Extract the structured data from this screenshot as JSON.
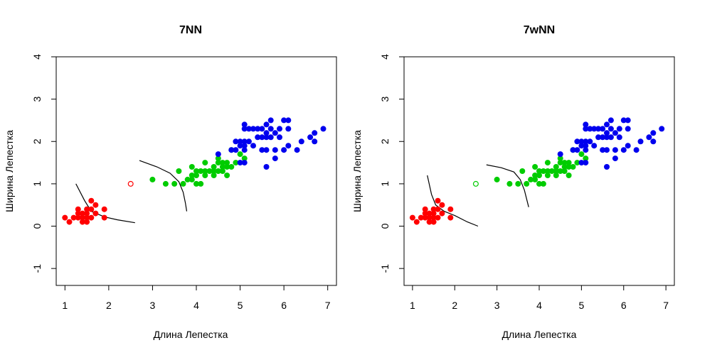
{
  "chart_data": [
    {
      "type": "scatter",
      "title": "7NN",
      "xlabel": "Длина Лепестка",
      "ylabel": "Ширина Лепестка",
      "xlim": [
        0.8,
        7.2
      ],
      "ylim": [
        -1.4,
        4.0
      ],
      "xticks": [
        "1",
        "2",
        "3",
        "4",
        "5",
        "6",
        "7"
      ],
      "yticks": [
        "-1",
        "0",
        "1",
        "2",
        "3",
        "4"
      ],
      "grid": false,
      "series": [
        {
          "color": "#ff0000",
          "filled": true,
          "points": [
            [
              1.0,
              0.2
            ],
            [
              1.1,
              0.1
            ],
            [
              1.2,
              0.2
            ],
            [
              1.3,
              0.2
            ],
            [
              1.3,
              0.3
            ],
            [
              1.3,
              0.4
            ],
            [
              1.4,
              0.1
            ],
            [
              1.4,
              0.2
            ],
            [
              1.4,
              0.3
            ],
            [
              1.5,
              0.1
            ],
            [
              1.5,
              0.2
            ],
            [
              1.5,
              0.3
            ],
            [
              1.5,
              0.4
            ],
            [
              1.6,
              0.2
            ],
            [
              1.6,
              0.4
            ],
            [
              1.6,
              0.6
            ],
            [
              1.7,
              0.3
            ],
            [
              1.7,
              0.5
            ],
            [
              1.9,
              0.2
            ],
            [
              1.9,
              0.4
            ]
          ]
        },
        {
          "color": "#00cc00",
          "filled": true,
          "points": [
            [
              3.0,
              1.1
            ],
            [
              3.3,
              1.0
            ],
            [
              3.5,
              1.0
            ],
            [
              3.6,
              1.3
            ],
            [
              3.7,
              1.0
            ],
            [
              3.8,
              1.1
            ],
            [
              3.9,
              1.1
            ],
            [
              3.9,
              1.2
            ],
            [
              3.9,
              1.4
            ],
            [
              4.0,
              1.0
            ],
            [
              4.0,
              1.2
            ],
            [
              4.0,
              1.3
            ],
            [
              4.1,
              1.0
            ],
            [
              4.1,
              1.3
            ],
            [
              4.2,
              1.2
            ],
            [
              4.2,
              1.3
            ],
            [
              4.2,
              1.5
            ],
            [
              4.3,
              1.3
            ],
            [
              4.4,
              1.2
            ],
            [
              4.4,
              1.3
            ],
            [
              4.4,
              1.4
            ],
            [
              4.5,
              1.3
            ],
            [
              4.5,
              1.5
            ],
            [
              4.5,
              1.6
            ],
            [
              4.6,
              1.3
            ],
            [
              4.6,
              1.4
            ],
            [
              4.6,
              1.5
            ],
            [
              4.7,
              1.2
            ],
            [
              4.7,
              1.4
            ],
            [
              4.7,
              1.5
            ],
            [
              4.8,
              1.4
            ],
            [
              4.8,
              1.8
            ],
            [
              4.9,
              1.5
            ],
            [
              5.0,
              1.7
            ],
            [
              5.1,
              1.6
            ]
          ]
        },
        {
          "color": "#0000ee",
          "filled": true,
          "points": [
            [
              4.5,
              1.7
            ],
            [
              4.8,
              1.8
            ],
            [
              4.9,
              1.8
            ],
            [
              4.9,
              2.0
            ],
            [
              5.0,
              1.5
            ],
            [
              5.0,
              1.9
            ],
            [
              5.0,
              2.0
            ],
            [
              5.1,
              1.5
            ],
            [
              5.1,
              1.8
            ],
            [
              5.1,
              1.9
            ],
            [
              5.1,
              2.0
            ],
            [
              5.1,
              2.3
            ],
            [
              5.1,
              2.4
            ],
            [
              5.2,
              2.0
            ],
            [
              5.2,
              2.3
            ],
            [
              5.3,
              1.9
            ],
            [
              5.3,
              2.3
            ],
            [
              5.4,
              2.1
            ],
            [
              5.4,
              2.3
            ],
            [
              5.5,
              1.8
            ],
            [
              5.5,
              2.1
            ],
            [
              5.5,
              2.3
            ],
            [
              5.6,
              1.4
            ],
            [
              5.6,
              1.8
            ],
            [
              5.6,
              2.1
            ],
            [
              5.6,
              2.2
            ],
            [
              5.6,
              2.4
            ],
            [
              5.7,
              2.1
            ],
            [
              5.7,
              2.3
            ],
            [
              5.7,
              2.5
            ],
            [
              5.8,
              1.6
            ],
            [
              5.8,
              1.8
            ],
            [
              5.8,
              2.2
            ],
            [
              5.9,
              2.1
            ],
            [
              5.9,
              2.3
            ],
            [
              6.0,
              1.8
            ],
            [
              6.0,
              2.5
            ],
            [
              6.1,
              1.9
            ],
            [
              6.1,
              2.3
            ],
            [
              6.1,
              2.5
            ],
            [
              6.3,
              1.8
            ],
            [
              6.4,
              2.0
            ],
            [
              6.6,
              2.1
            ],
            [
              6.7,
              2.0
            ],
            [
              6.7,
              2.2
            ],
            [
              6.9,
              2.3
            ]
          ]
        },
        {
          "color": "#ff0000",
          "filled": false,
          "points": [
            [
              2.5,
              1.0
            ]
          ]
        }
      ],
      "boundaries": [
        [
          [
            1.25,
            1.0
          ],
          [
            1.45,
            0.6
          ],
          [
            1.6,
            0.35
          ],
          [
            1.9,
            0.22
          ],
          [
            2.2,
            0.15
          ],
          [
            2.6,
            0.08
          ]
        ],
        [
          [
            2.7,
            1.55
          ],
          [
            3.1,
            1.4
          ],
          [
            3.4,
            1.25
          ],
          [
            3.6,
            1.05
          ],
          [
            3.7,
            0.8
          ],
          [
            3.75,
            0.55
          ],
          [
            3.78,
            0.35
          ]
        ]
      ]
    },
    {
      "type": "scatter",
      "title": "7wNN",
      "xlabel": "Длина Лепестка",
      "ylabel": "Ширина Лепестка",
      "xlim": [
        0.8,
        7.2
      ],
      "ylim": [
        -1.4,
        4.0
      ],
      "xticks": [
        "1",
        "2",
        "3",
        "4",
        "5",
        "6",
        "7"
      ],
      "yticks": [
        "-1",
        "0",
        "1",
        "2",
        "3",
        "4"
      ],
      "grid": false,
      "series": [
        {
          "color": "#ff0000",
          "filled": true,
          "points": [
            [
              1.0,
              0.2
            ],
            [
              1.1,
              0.1
            ],
            [
              1.2,
              0.2
            ],
            [
              1.3,
              0.2
            ],
            [
              1.3,
              0.3
            ],
            [
              1.3,
              0.4
            ],
            [
              1.4,
              0.1
            ],
            [
              1.4,
              0.2
            ],
            [
              1.4,
              0.3
            ],
            [
              1.5,
              0.1
            ],
            [
              1.5,
              0.2
            ],
            [
              1.5,
              0.3
            ],
            [
              1.5,
              0.4
            ],
            [
              1.6,
              0.2
            ],
            [
              1.6,
              0.4
            ],
            [
              1.6,
              0.6
            ],
            [
              1.7,
              0.3
            ],
            [
              1.7,
              0.5
            ],
            [
              1.9,
              0.2
            ],
            [
              1.9,
              0.4
            ]
          ]
        },
        {
          "color": "#00cc00",
          "filled": true,
          "points": [
            [
              3.0,
              1.1
            ],
            [
              3.3,
              1.0
            ],
            [
              3.5,
              1.0
            ],
            [
              3.6,
              1.3
            ],
            [
              3.7,
              1.0
            ],
            [
              3.8,
              1.1
            ],
            [
              3.9,
              1.1
            ],
            [
              3.9,
              1.2
            ],
            [
              3.9,
              1.4
            ],
            [
              4.0,
              1.0
            ],
            [
              4.0,
              1.2
            ],
            [
              4.0,
              1.3
            ],
            [
              4.1,
              1.0
            ],
            [
              4.1,
              1.3
            ],
            [
              4.2,
              1.2
            ],
            [
              4.2,
              1.3
            ],
            [
              4.2,
              1.5
            ],
            [
              4.3,
              1.3
            ],
            [
              4.4,
              1.2
            ],
            [
              4.4,
              1.3
            ],
            [
              4.4,
              1.4
            ],
            [
              4.5,
              1.3
            ],
            [
              4.5,
              1.5
            ],
            [
              4.5,
              1.6
            ],
            [
              4.6,
              1.3
            ],
            [
              4.6,
              1.4
            ],
            [
              4.6,
              1.5
            ],
            [
              4.7,
              1.2
            ],
            [
              4.7,
              1.4
            ],
            [
              4.7,
              1.5
            ],
            [
              4.8,
              1.4
            ],
            [
              4.8,
              1.8
            ],
            [
              4.9,
              1.5
            ],
            [
              5.0,
              1.7
            ],
            [
              5.1,
              1.6
            ]
          ]
        },
        {
          "color": "#0000ee",
          "filled": true,
          "points": [
            [
              4.5,
              1.7
            ],
            [
              4.8,
              1.8
            ],
            [
              4.9,
              1.8
            ],
            [
              4.9,
              2.0
            ],
            [
              5.0,
              1.5
            ],
            [
              5.0,
              1.9
            ],
            [
              5.0,
              2.0
            ],
            [
              5.1,
              1.5
            ],
            [
              5.1,
              1.8
            ],
            [
              5.1,
              1.9
            ],
            [
              5.1,
              2.0
            ],
            [
              5.1,
              2.3
            ],
            [
              5.1,
              2.4
            ],
            [
              5.2,
              2.0
            ],
            [
              5.2,
              2.3
            ],
            [
              5.3,
              1.9
            ],
            [
              5.3,
              2.3
            ],
            [
              5.4,
              2.1
            ],
            [
              5.4,
              2.3
            ],
            [
              5.5,
              1.8
            ],
            [
              5.5,
              2.1
            ],
            [
              5.5,
              2.3
            ],
            [
              5.6,
              1.4
            ],
            [
              5.6,
              1.8
            ],
            [
              5.6,
              2.1
            ],
            [
              5.6,
              2.2
            ],
            [
              5.6,
              2.4
            ],
            [
              5.7,
              2.1
            ],
            [
              5.7,
              2.3
            ],
            [
              5.7,
              2.5
            ],
            [
              5.8,
              1.6
            ],
            [
              5.8,
              1.8
            ],
            [
              5.8,
              2.2
            ],
            [
              5.9,
              2.1
            ],
            [
              5.9,
              2.3
            ],
            [
              6.0,
              1.8
            ],
            [
              6.0,
              2.5
            ],
            [
              6.1,
              1.9
            ],
            [
              6.1,
              2.3
            ],
            [
              6.1,
              2.5
            ],
            [
              6.3,
              1.8
            ],
            [
              6.4,
              2.0
            ],
            [
              6.6,
              2.1
            ],
            [
              6.7,
              2.0
            ],
            [
              6.7,
              2.2
            ],
            [
              6.9,
              2.3
            ]
          ]
        },
        {
          "color": "#00cc00",
          "filled": false,
          "points": [
            [
              2.5,
              1.0
            ]
          ]
        }
      ],
      "boundaries": [
        [
          [
            1.35,
            1.2
          ],
          [
            1.45,
            0.75
          ],
          [
            1.55,
            0.5
          ],
          [
            1.75,
            0.35
          ],
          [
            2.0,
            0.25
          ],
          [
            2.3,
            0.1
          ],
          [
            2.55,
            0.0
          ]
        ],
        [
          [
            2.75,
            1.45
          ],
          [
            3.1,
            1.38
          ],
          [
            3.4,
            1.28
          ],
          [
            3.55,
            1.1
          ],
          [
            3.65,
            0.85
          ],
          [
            3.7,
            0.65
          ],
          [
            3.75,
            0.45
          ]
        ]
      ]
    }
  ]
}
